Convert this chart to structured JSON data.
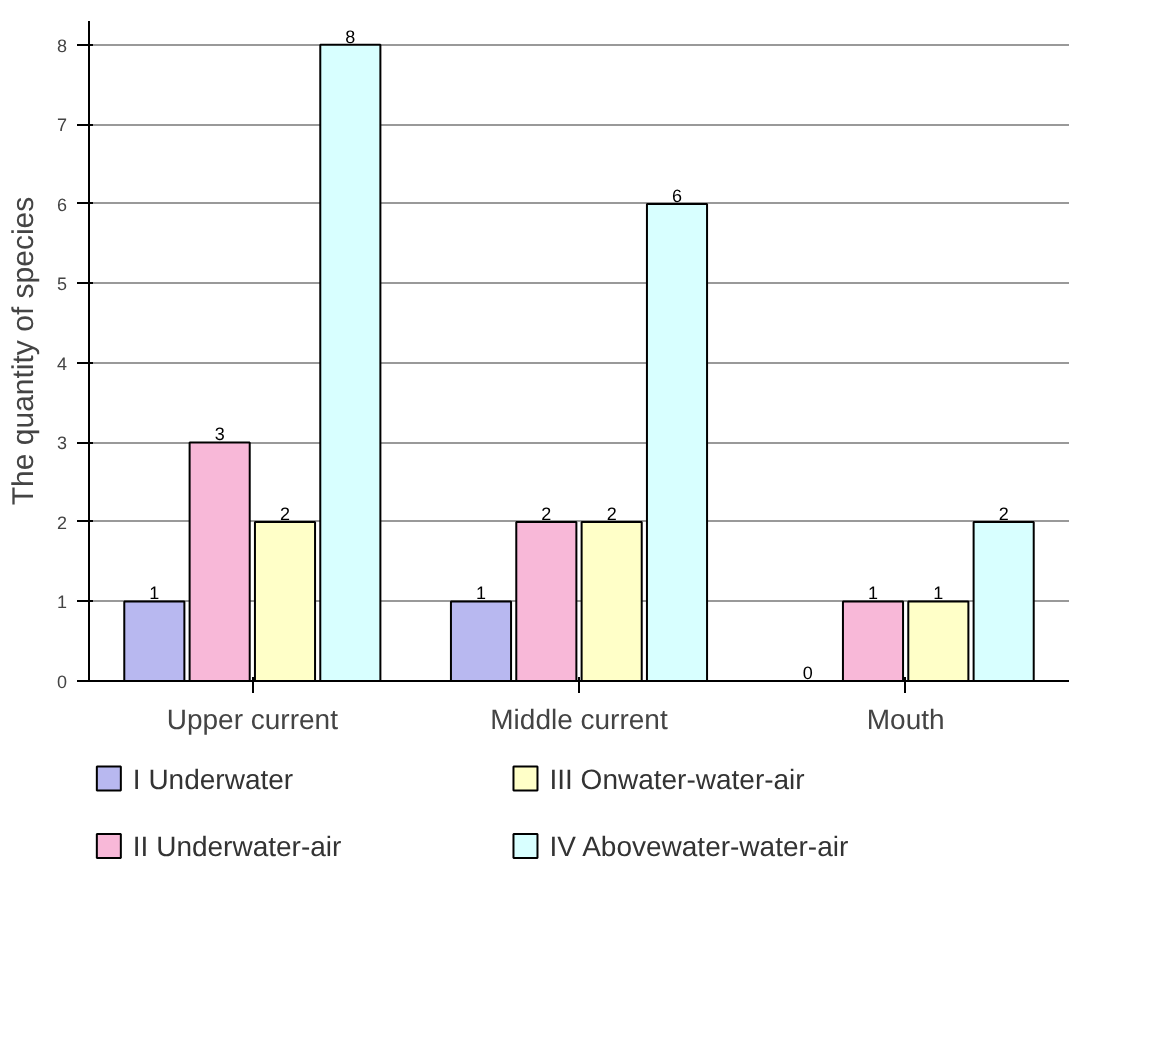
{
  "chart_data": {
    "type": "bar",
    "ylabel": "The quantity of species",
    "categories": [
      "Upper current",
      "Middle current",
      "Mouth"
    ],
    "series": [
      {
        "name": "I Underwater",
        "color": "#b8b8f0",
        "values": [
          1,
          1,
          0
        ]
      },
      {
        "name": "II Underwater-air",
        "color": "#f8b8d8",
        "values": [
          3,
          2,
          1
        ]
      },
      {
        "name": "III Onwater-water-air",
        "color": "#ffffc8",
        "values": [
          2,
          2,
          1
        ]
      },
      {
        "name": "IV Abovewater-water-air",
        "color": "#d8ffff",
        "values": [
          8,
          6,
          2
        ]
      }
    ],
    "ylim": [
      0,
      8.3
    ],
    "yticks": [
      0,
      1,
      2,
      3,
      4,
      5,
      6,
      7,
      8
    ],
    "grid": "y",
    "legend": "bottom",
    "data_labels": true
  }
}
